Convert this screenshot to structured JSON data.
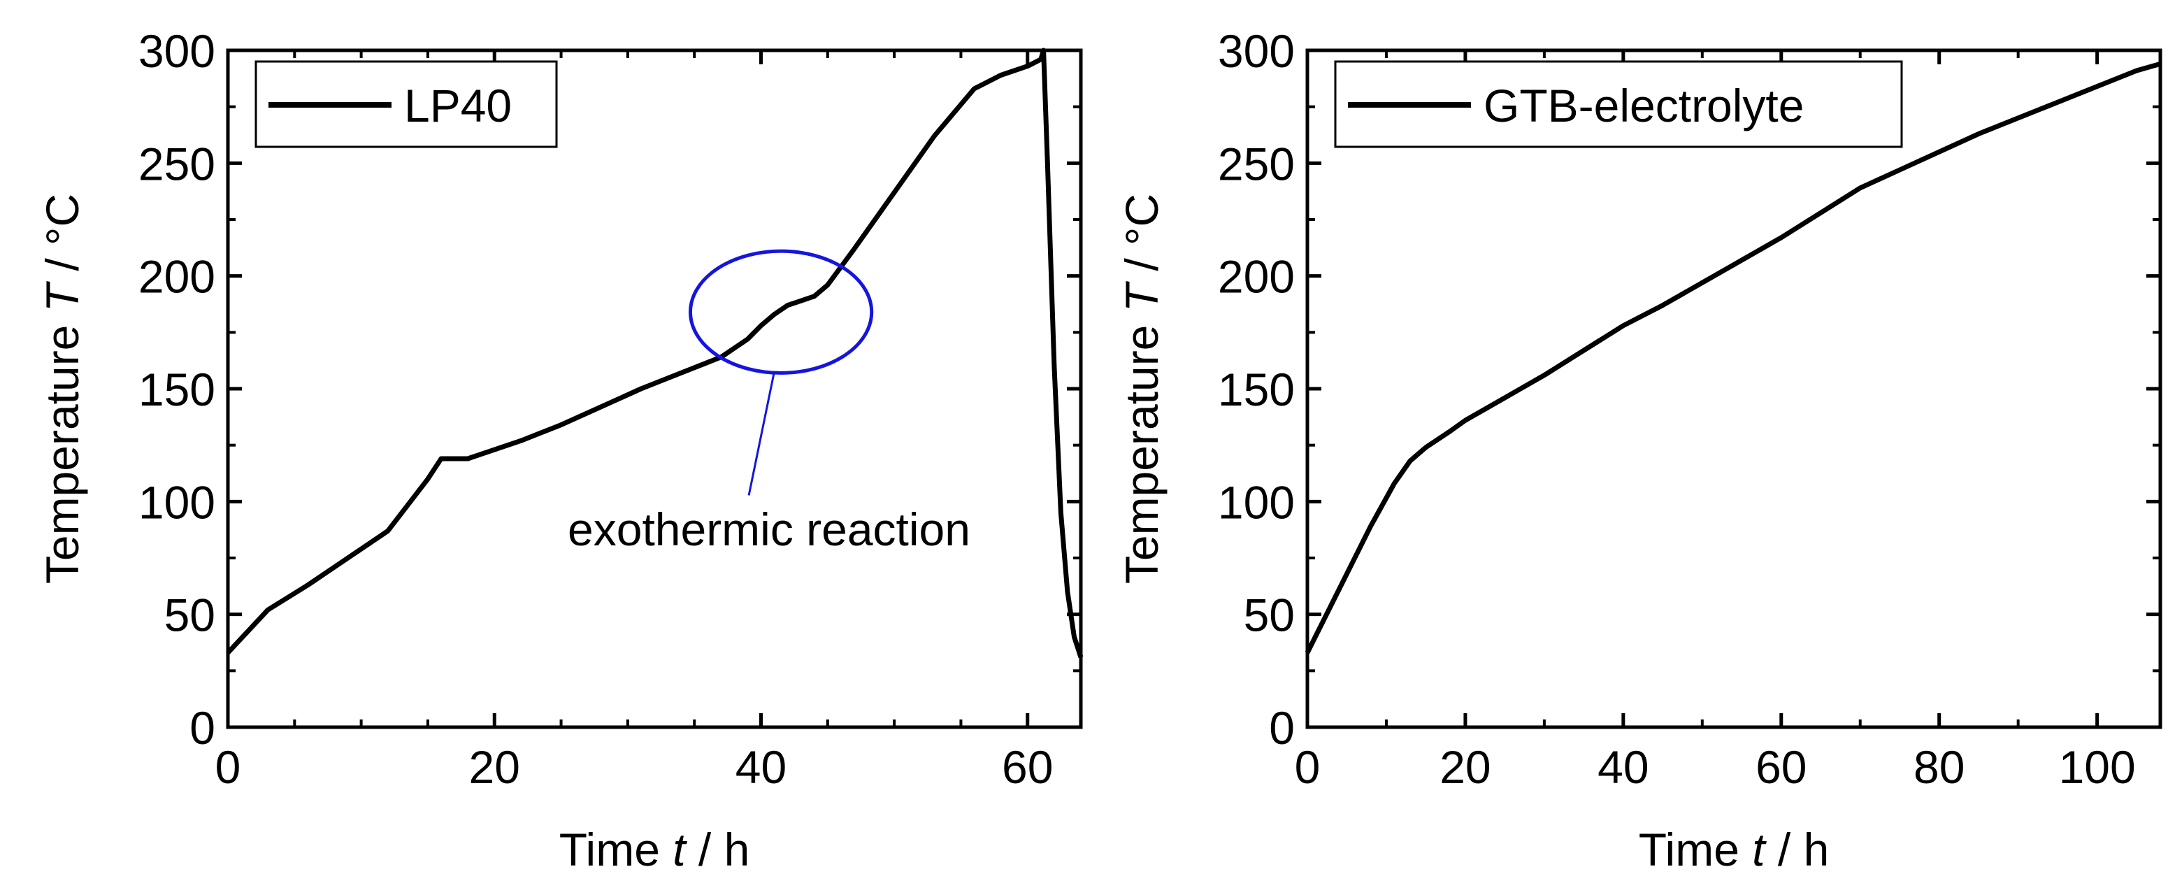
{
  "chart_data": [
    {
      "type": "line",
      "legend_position": "top-left",
      "xlabel": {
        "prefix": "Time ",
        "symbol": "t",
        "suffix": " / h"
      },
      "ylabel": {
        "prefix": "Temperature ",
        "symbol": "T",
        "suffix": " / °C"
      },
      "xlim": [
        0,
        64
      ],
      "ylim": [
        0,
        300
      ],
      "xticks": [
        0,
        20,
        40,
        60
      ],
      "yticks": [
        0,
        50,
        100,
        150,
        200,
        250,
        300
      ],
      "xtick_labels": [
        "0",
        "20",
        "40",
        "60"
      ],
      "ytick_labels": [
        "0",
        "50",
        "100",
        "150",
        "200",
        "250",
        "300"
      ],
      "series": [
        {
          "name": "LP40",
          "color": "#000000",
          "x": [
            0,
            3,
            6,
            9,
            12,
            15,
            16,
            18,
            19.5,
            22,
            25,
            28,
            31,
            34,
            37,
            39,
            40,
            41,
            42,
            43,
            44,
            45,
            47,
            50,
            53,
            56,
            58,
            60,
            61,
            61.2,
            61.5,
            62,
            62.5,
            63,
            63.5,
            64
          ],
          "y": [
            33,
            52,
            63,
            75,
            87,
            110,
            119,
            119,
            122,
            127,
            134,
            142,
            150,
            157,
            164,
            172,
            178,
            183,
            187,
            189,
            191,
            196,
            212,
            237,
            262,
            283,
            289,
            293,
            296,
            300,
            250,
            160,
            95,
            60,
            40,
            31
          ]
        }
      ],
      "annotation": {
        "text": "exothermic reaction",
        "ellipse_center": [
          41.5,
          184
        ],
        "ellipse_radii": [
          6.8,
          27
        ],
        "color": "#1515e0"
      }
    },
    {
      "type": "line",
      "legend_position": "top-left",
      "xlabel": {
        "prefix": "Time ",
        "symbol": "t",
        "suffix": " / h"
      },
      "ylabel": {
        "prefix": "Temperature ",
        "symbol": "T",
        "suffix": " / °C"
      },
      "xlim": [
        0,
        108
      ],
      "ylim": [
        0,
        300
      ],
      "xticks": [
        0,
        20,
        40,
        60,
        80,
        100
      ],
      "yticks": [
        0,
        50,
        100,
        150,
        200,
        250,
        300
      ],
      "xtick_labels": [
        "0",
        "20",
        "40",
        "60",
        "80",
        "100"
      ],
      "ytick_labels": [
        "0",
        "50",
        "100",
        "150",
        "200",
        "250",
        "300"
      ],
      "series": [
        {
          "name": "GTB-electrolyte",
          "color": "#000000",
          "x": [
            0,
            2,
            5,
            8,
            11,
            13,
            15,
            18,
            20,
            25,
            30,
            35,
            40,
            45,
            50,
            55,
            60,
            65,
            70,
            75,
            80,
            85,
            90,
            95,
            100,
            105,
            108
          ],
          "y": [
            33,
            47,
            68,
            89,
            108,
            118,
            124,
            131,
            136,
            146,
            156,
            167,
            178,
            187,
            197,
            207,
            217,
            228,
            239,
            247,
            255,
            263,
            270,
            277,
            284,
            291,
            294
          ]
        }
      ]
    }
  ]
}
